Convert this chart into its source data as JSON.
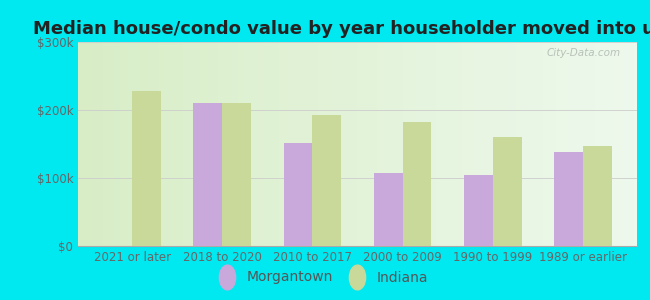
{
  "title": "Median house/condo value by year householder moved into unit",
  "categories": [
    "2021 or later",
    "2018 to 2020",
    "2010 to 2017",
    "2000 to 2009",
    "1990 to 1999",
    "1989 or earlier"
  ],
  "morgantown": [
    null,
    210000,
    152000,
    108000,
    105000,
    138000
  ],
  "indiana": [
    228000,
    210000,
    192000,
    182000,
    160000,
    147000
  ],
  "morgantown_color": "#c9a8dc",
  "indiana_color": "#c8d99a",
  "background_outer": "#00e8f0",
  "background_inner": "#e8f5e2",
  "ylim": [
    0,
    300000
  ],
  "ytick_labels": [
    "$0",
    "$100k",
    "$200k",
    "$300k"
  ],
  "ytick_vals": [
    0,
    100000,
    200000,
    300000
  ],
  "legend_morgantown": "Morgantown",
  "legend_indiana": "Indiana",
  "bar_width": 0.32,
  "title_fontsize": 13,
  "tick_fontsize": 8.5,
  "legend_fontsize": 10,
  "watermark": "City-Data.com"
}
